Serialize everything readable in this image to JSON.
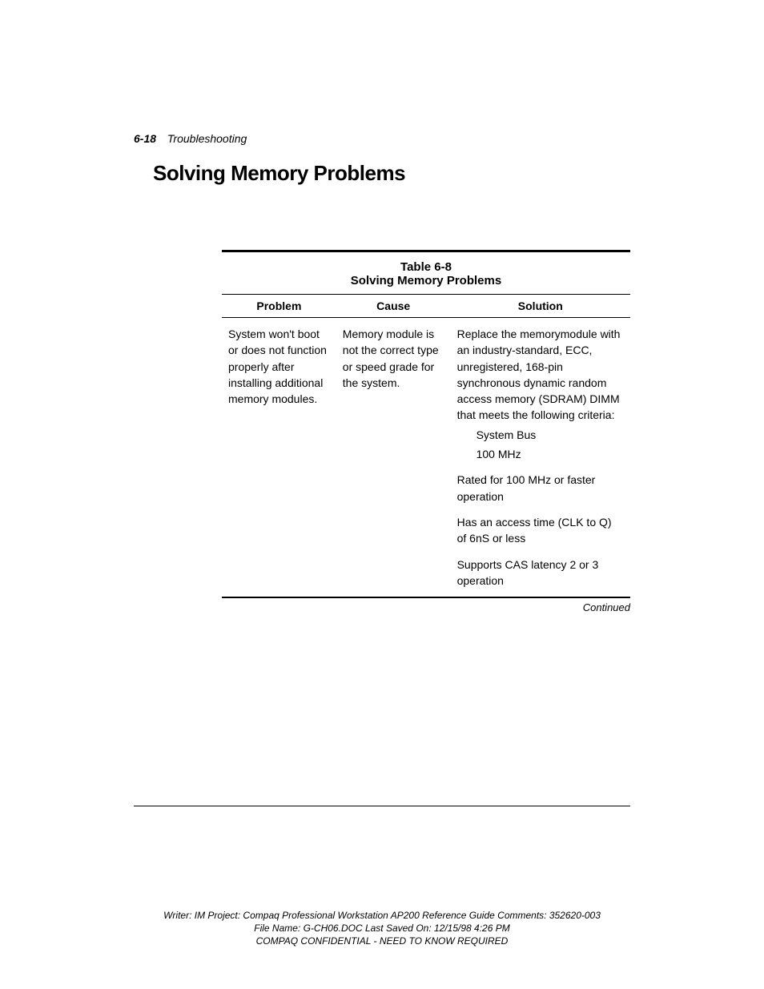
{
  "header": {
    "page_number": "6-18",
    "section_name": "Troubleshooting"
  },
  "title": "Solving Memory Problems",
  "table": {
    "number": "Table 6-8",
    "title": "Solving Memory Problems",
    "columns": {
      "problem": "Problem",
      "cause": "Cause",
      "solution": "Solution"
    },
    "row": {
      "problem": "System won't boot or does not function properly after installing additional memory modules.",
      "cause": "Memory module is not the correct type or speed grade for the system.",
      "solution_main": "Replace the memorymodule with an industry-standard, ECC, unregistered, 168-pin synchronous dynamic random access memory (SDRAM) DIMM that meets the following criteria:",
      "solution_indent1": "System Bus",
      "solution_indent2": "100 MHz",
      "solution_sub1": "Rated for 100 MHz or faster operation",
      "solution_sub2": "Has an access time (CLK to Q) of 6nS or less",
      "solution_sub3": "Supports CAS latency 2 or 3 operation"
    },
    "continued_label": "Continued"
  },
  "footer": {
    "line1": "Writer: IM   Project: Compaq Professional Workstation AP200 Reference Guide   Comments: 352620-003",
    "line2": "File Name: G-CH06.DOC   Last Saved On: 12/15/98 4:26 PM",
    "line3": "COMPAQ CONFIDENTIAL - NEED TO KNOW REQUIRED"
  }
}
